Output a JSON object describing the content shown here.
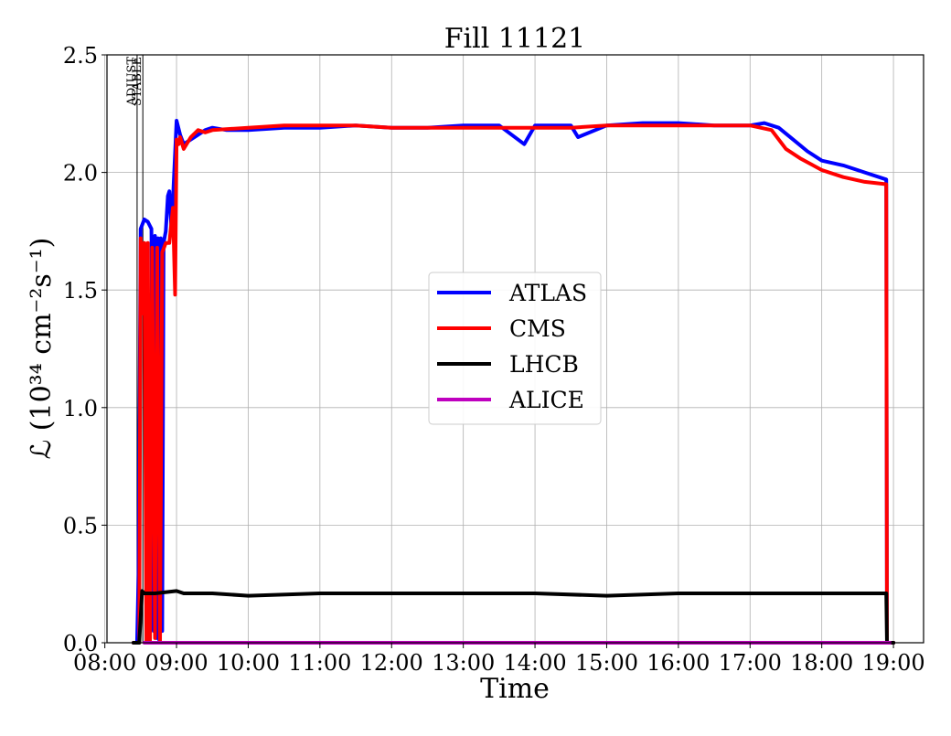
{
  "chart_data": {
    "type": "line",
    "title": "Fill 11121",
    "xlabel": "Time",
    "ylabel": "ℒ (10³⁴ cm⁻²s⁻¹)",
    "xlim": [
      8.03,
      19.42
    ],
    "ylim": [
      0,
      2.5
    ],
    "x_unit": "hour of day",
    "x_ticks": [
      {
        "value": 8,
        "label": "08:00"
      },
      {
        "value": 9,
        "label": "09:00"
      },
      {
        "value": 10,
        "label": "10:00"
      },
      {
        "value": 11,
        "label": "11:00"
      },
      {
        "value": 12,
        "label": "12:00"
      },
      {
        "value": 13,
        "label": "13:00"
      },
      {
        "value": 14,
        "label": "14:00"
      },
      {
        "value": 15,
        "label": "15:00"
      },
      {
        "value": 16,
        "label": "16:00"
      },
      {
        "value": 17,
        "label": "17:00"
      },
      {
        "value": 18,
        "label": "18:00"
      },
      {
        "value": 19,
        "label": "19:00"
      }
    ],
    "y_ticks": [
      {
        "value": 0.0,
        "label": "0.0"
      },
      {
        "value": 0.5,
        "label": "0.5"
      },
      {
        "value": 1.0,
        "label": "1.0"
      },
      {
        "value": 1.5,
        "label": "1.5"
      },
      {
        "value": 2.0,
        "label": "2.0"
      },
      {
        "value": 2.5,
        "label": "2.5"
      }
    ],
    "grid": true,
    "legend_position": "center",
    "phase_markers": [
      {
        "label": "ADJUST",
        "x": 8.45
      },
      {
        "label": "STABLE",
        "x": 8.53
      }
    ],
    "series": [
      {
        "name": "ATLAS",
        "color": "#0000ff",
        "x": [
          8.4,
          8.45,
          8.47,
          8.5,
          8.55,
          8.6,
          8.65,
          8.68,
          8.7,
          8.72,
          8.74,
          8.76,
          8.78,
          8.8,
          8.82,
          8.85,
          8.88,
          8.9,
          8.93,
          8.96,
          9.0,
          9.05,
          9.1,
          9.2,
          9.3,
          9.4,
          9.5,
          9.7,
          10.0,
          10.5,
          11.0,
          11.5,
          12.0,
          12.5,
          13.0,
          13.5,
          13.85,
          14.0,
          14.5,
          14.6,
          15.0,
          15.5,
          16.0,
          16.5,
          17.0,
          17.2,
          17.4,
          17.6,
          17.8,
          18.0,
          18.3,
          18.6,
          18.9,
          18.91,
          19.0
        ],
        "y": [
          0.0,
          0.0,
          0.29,
          1.76,
          1.8,
          1.79,
          1.76,
          0.05,
          1.73,
          0.02,
          1.72,
          0.0,
          1.72,
          0.05,
          1.7,
          1.75,
          1.9,
          1.92,
          1.75,
          1.95,
          2.22,
          2.16,
          2.12,
          2.14,
          2.16,
          2.18,
          2.19,
          2.18,
          2.18,
          2.19,
          2.19,
          2.2,
          2.19,
          2.19,
          2.2,
          2.2,
          2.12,
          2.2,
          2.2,
          2.15,
          2.2,
          2.21,
          2.21,
          2.2,
          2.2,
          2.21,
          2.19,
          2.14,
          2.09,
          2.05,
          2.03,
          2.0,
          1.97,
          0.0,
          0.0
        ]
      },
      {
        "name": "CMS",
        "color": "#ff0000",
        "x": [
          8.4,
          8.48,
          8.5,
          8.52,
          8.55,
          8.58,
          8.6,
          8.63,
          8.66,
          8.7,
          8.73,
          8.77,
          8.8,
          8.85,
          8.9,
          8.95,
          8.98,
          9.0,
          9.03,
          9.05,
          9.1,
          9.2,
          9.3,
          9.4,
          9.5,
          10.0,
          10.5,
          11.0,
          11.5,
          12.0,
          12.5,
          13.0,
          13.5,
          14.0,
          14.5,
          15.0,
          15.5,
          16.0,
          16.5,
          17.0,
          17.3,
          17.5,
          17.7,
          18.0,
          18.3,
          18.6,
          18.9,
          18.91,
          19.0
        ],
        "y": [
          0.0,
          0.0,
          1.72,
          1.4,
          1.7,
          0.0,
          1.7,
          0.0,
          1.68,
          0.02,
          1.68,
          0.0,
          1.66,
          1.7,
          1.7,
          1.85,
          1.48,
          2.14,
          2.12,
          2.15,
          2.1,
          2.15,
          2.18,
          2.17,
          2.18,
          2.19,
          2.2,
          2.2,
          2.2,
          2.19,
          2.19,
          2.19,
          2.19,
          2.19,
          2.19,
          2.2,
          2.2,
          2.2,
          2.2,
          2.2,
          2.18,
          2.1,
          2.06,
          2.01,
          1.98,
          1.96,
          1.95,
          0.0,
          0.0
        ]
      },
      {
        "name": "LHCB",
        "color": "#000000",
        "x": [
          8.4,
          8.48,
          8.52,
          8.55,
          8.7,
          9.0,
          9.1,
          9.5,
          10.0,
          11.0,
          12.0,
          13.0,
          14.0,
          15.0,
          16.0,
          17.0,
          18.0,
          18.5,
          18.9,
          18.91,
          19.0
        ],
        "y": [
          0.0,
          0.0,
          0.22,
          0.21,
          0.21,
          0.22,
          0.21,
          0.21,
          0.2,
          0.21,
          0.21,
          0.21,
          0.21,
          0.2,
          0.21,
          0.21,
          0.21,
          0.21,
          0.21,
          0.0,
          0.0
        ]
      },
      {
        "name": "ALICE",
        "color": "#bf00bf",
        "x": [
          8.55,
          18.95
        ],
        "y": [
          0.0,
          0.0
        ]
      }
    ]
  }
}
